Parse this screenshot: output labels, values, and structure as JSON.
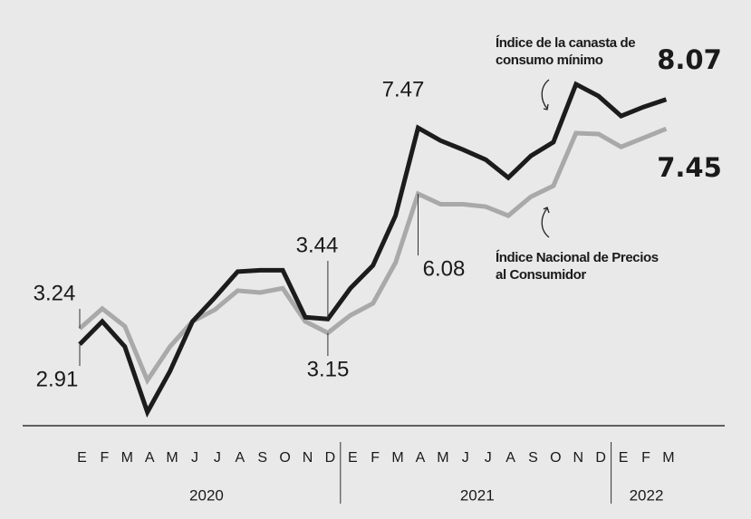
{
  "chart_data": {
    "type": "line",
    "categories": [
      "E",
      "F",
      "M",
      "A",
      "M",
      "J",
      "J",
      "A",
      "S",
      "O",
      "N",
      "D",
      "E",
      "F",
      "M",
      "A",
      "M",
      "J",
      "J",
      "A",
      "S",
      "O",
      "N",
      "D",
      "E",
      "F",
      "M"
    ],
    "years": [
      "2020",
      "2021",
      "2022"
    ],
    "series": [
      {
        "name": "Índice de la canasta de consumo mínimo",
        "color": "#1c1c1c",
        "values": [
          2.91,
          3.39,
          2.86,
          1.48,
          2.34,
          3.39,
          3.9,
          4.44,
          4.47,
          4.47,
          3.48,
          3.44,
          4.09,
          4.57,
          5.62,
          7.47,
          7.2,
          7.01,
          6.8,
          6.42,
          6.88,
          7.17,
          8.39,
          8.14,
          7.72,
          7.91,
          8.07
        ]
      },
      {
        "name": "Índice Nacional de Precios al Consumidor",
        "color": "#a9a9a9",
        "values": [
          3.24,
          3.66,
          3.29,
          2.15,
          2.86,
          3.39,
          3.64,
          4.04,
          4.0,
          4.09,
          3.39,
          3.15,
          3.52,
          3.77,
          4.63,
          6.08,
          5.86,
          5.86,
          5.81,
          5.62,
          6.02,
          6.25,
          7.36,
          7.34,
          7.07,
          7.26,
          7.45
        ]
      }
    ]
  }
}
